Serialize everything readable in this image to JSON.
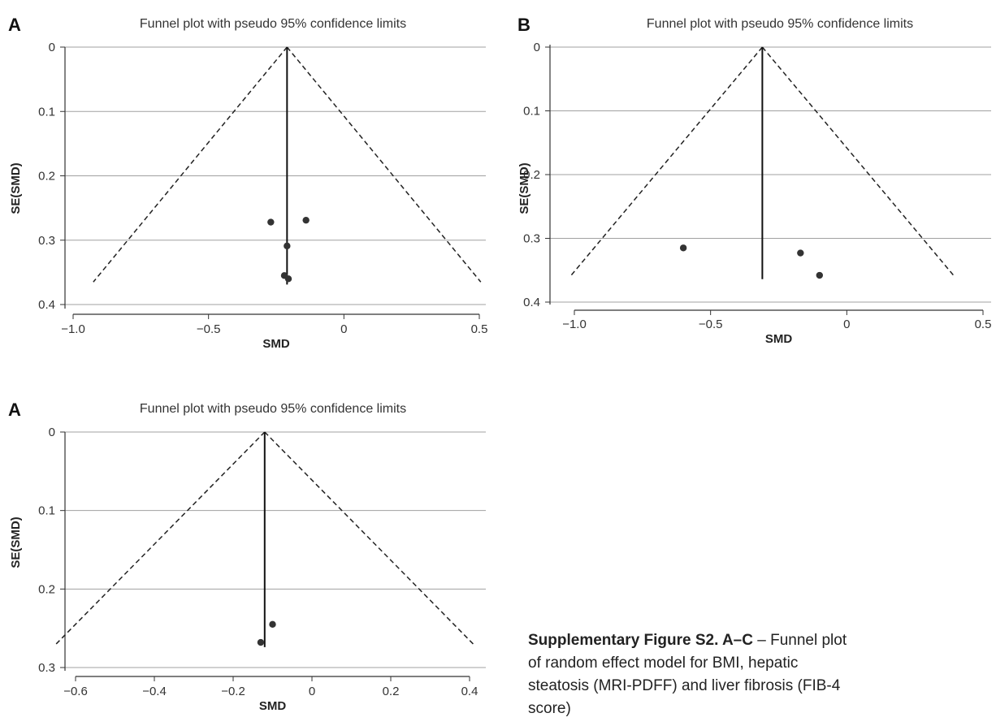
{
  "caption": {
    "lead": "Supplementary Figure S2. A–C",
    "text": " – Funnel plot of random effect model for BMI, hepatic steatosis (MRI-PDFF) and liver fibrosis (FIB-4 score)"
  },
  "chart_data": [
    {
      "type": "scatter",
      "panel": "A",
      "title": "Funnel plot with pseudo 95% confidence limits",
      "xlabel": "SMD",
      "ylabel": "SE(SMD)",
      "xlim": [
        -1.0,
        0.5
      ],
      "ylim": [
        0.0,
        0.4
      ],
      "xticks": [
        -1.0,
        -0.5,
        0,
        0.5
      ],
      "xtick_labels": [
        "−1.0",
        "−0.5",
        "0",
        "0.5"
      ],
      "yticks": [
        0,
        0.1,
        0.2,
        0.3,
        0.4
      ],
      "ytick_labels": [
        "0",
        "0.1",
        "0.2",
        "0.3",
        "0.4"
      ],
      "y_inverted": true,
      "grid": "horizontal",
      "pooled_effect": -0.21,
      "funnel_se_max": 0.365,
      "points": [
        {
          "x": -0.27,
          "y": 0.272
        },
        {
          "x": -0.14,
          "y": 0.269
        },
        {
          "x": -0.21,
          "y": 0.309
        },
        {
          "x": -0.22,
          "y": 0.355
        },
        {
          "x": -0.205,
          "y": 0.36
        }
      ]
    },
    {
      "type": "scatter",
      "panel": "B",
      "title": "Funnel plot with pseudo 95% confidence limits",
      "xlabel": "SMD",
      "ylabel": "SE(SMD)",
      "xlim": [
        -1.0,
        0.5
      ],
      "ylim": [
        0.0,
        0.4
      ],
      "xticks": [
        -1.0,
        -0.5,
        0,
        0.5
      ],
      "xtick_labels": [
        "−1.0",
        "−0.5",
        "0",
        "0.5"
      ],
      "yticks": [
        0,
        0.1,
        0.2,
        0.3,
        0.4
      ],
      "ytick_labels": [
        "0",
        "0.1",
        "0.2",
        "0.3",
        "0.4"
      ],
      "y_inverted": true,
      "grid": "horizontal",
      "pooled_effect": -0.31,
      "funnel_se_max": 0.36,
      "points": [
        {
          "x": -0.6,
          "y": 0.315
        },
        {
          "x": -0.17,
          "y": 0.323
        },
        {
          "x": -0.1,
          "y": 0.358
        }
      ]
    },
    {
      "type": "scatter",
      "panel": "A",
      "title": "Funnel plot with pseudo 95% confidence limits",
      "xlabel": "SMD",
      "ylabel": "SE(SMD)",
      "xlim": [
        -0.6,
        0.4
      ],
      "ylim": [
        0.0,
        0.3
      ],
      "xticks": [
        -0.6,
        -0.4,
        -0.2,
        0,
        0.2,
        0.4
      ],
      "xtick_labels": [
        "−0.6",
        "−0.4",
        "−0.2",
        "0",
        "0.2",
        "0.4"
      ],
      "yticks": [
        0,
        0.1,
        0.2,
        0.3
      ],
      "ytick_labels": [
        "0",
        "0.1",
        "0.2",
        "0.3"
      ],
      "y_inverted": true,
      "grid": "horizontal",
      "pooled_effect": -0.12,
      "funnel_se_max": 0.27,
      "points": [
        {
          "x": -0.1,
          "y": 0.245
        },
        {
          "x": -0.13,
          "y": 0.268
        }
      ]
    }
  ]
}
